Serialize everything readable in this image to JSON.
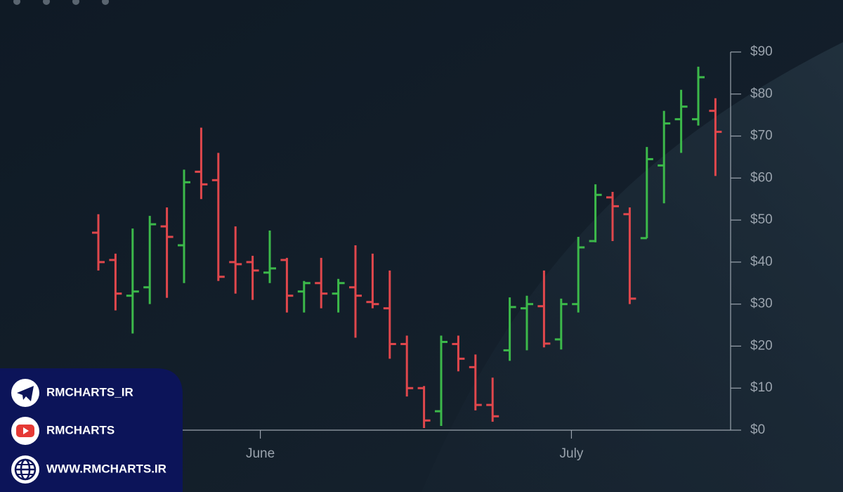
{
  "chart_data": {
    "type": "ohlc",
    "categories": [
      null,
      null,
      null,
      null,
      null,
      null,
      null,
      null,
      null,
      null,
      null,
      null,
      null,
      null,
      null,
      null,
      null,
      null,
      null,
      null,
      null,
      null,
      null,
      null,
      null,
      null,
      null,
      null,
      null,
      null,
      null,
      null,
      null,
      null,
      null,
      null,
      null
    ],
    "open": [
      47,
      40.5,
      32,
      34,
      48.5,
      44,
      61.5,
      59.5,
      40,
      40,
      37.5,
      40.5,
      33,
      35,
      32.5,
      34,
      30.5,
      29,
      20.5,
      10,
      4.5,
      20.5,
      15,
      6,
      19,
      29,
      29.5,
      21.6,
      30,
      45,
      55.4,
      51.4,
      45.7,
      63,
      74,
      74,
      76
    ],
    "high": [
      51.4,
      42,
      48,
      51,
      53,
      62,
      72,
      66,
      48.5,
      41.5,
      47.5,
      41,
      35.5,
      41,
      36,
      44,
      42,
      38,
      22.5,
      10.5,
      22.5,
      22.5,
      18,
      12.5,
      31.6,
      32,
      38,
      31.3,
      46,
      58.5,
      56.7,
      53,
      67.4,
      76,
      81,
      86.5,
      79
    ],
    "low": [
      38,
      28.5,
      23,
      30,
      31.5,
      35,
      55,
      35.5,
      32.5,
      31,
      35,
      28,
      28,
      29,
      28,
      22,
      29,
      17,
      8,
      0.5,
      1,
      14,
      4.7,
      2,
      16.5,
      19,
      19.7,
      19.2,
      28,
      44.7,
      45,
      30,
      45.7,
      54,
      66,
      72.5,
      60.5
    ],
    "close": [
      40,
      32.5,
      33,
      49,
      46,
      59,
      58.5,
      36.5,
      39.5,
      38,
      38.5,
      32,
      35,
      32.5,
      35,
      32,
      30,
      20.5,
      10,
      2.3,
      21,
      17,
      6,
      3.3,
      29.3,
      30,
      20.6,
      30,
      43.5,
      56,
      53.3,
      31.3,
      64.5,
      73,
      77,
      84,
      71
    ],
    "up_color": "#3cb94a",
    "down_color": "#e0474c",
    "ylim": [
      0,
      90
    ],
    "yticks": [
      {
        "value": 0,
        "label": "$0"
      },
      {
        "value": 10,
        "label": "$10"
      },
      {
        "value": 20,
        "label": "$20"
      },
      {
        "value": 30,
        "label": "$30"
      },
      {
        "value": 40,
        "label": "$40"
      },
      {
        "value": 50,
        "label": "$50"
      },
      {
        "value": 60,
        "label": "$60"
      },
      {
        "value": 70,
        "label": "$70"
      },
      {
        "value": 80,
        "label": "$80"
      },
      {
        "value": 90,
        "label": "$90"
      }
    ],
    "xticks": [
      {
        "value": 9.45,
        "label": "June"
      },
      {
        "value": 27.6,
        "label": "July"
      }
    ]
  },
  "branding": {
    "items": [
      "RMCHARTS_IR",
      "RMCHARTS",
      "WWW.RMCHARTS.IR"
    ]
  }
}
